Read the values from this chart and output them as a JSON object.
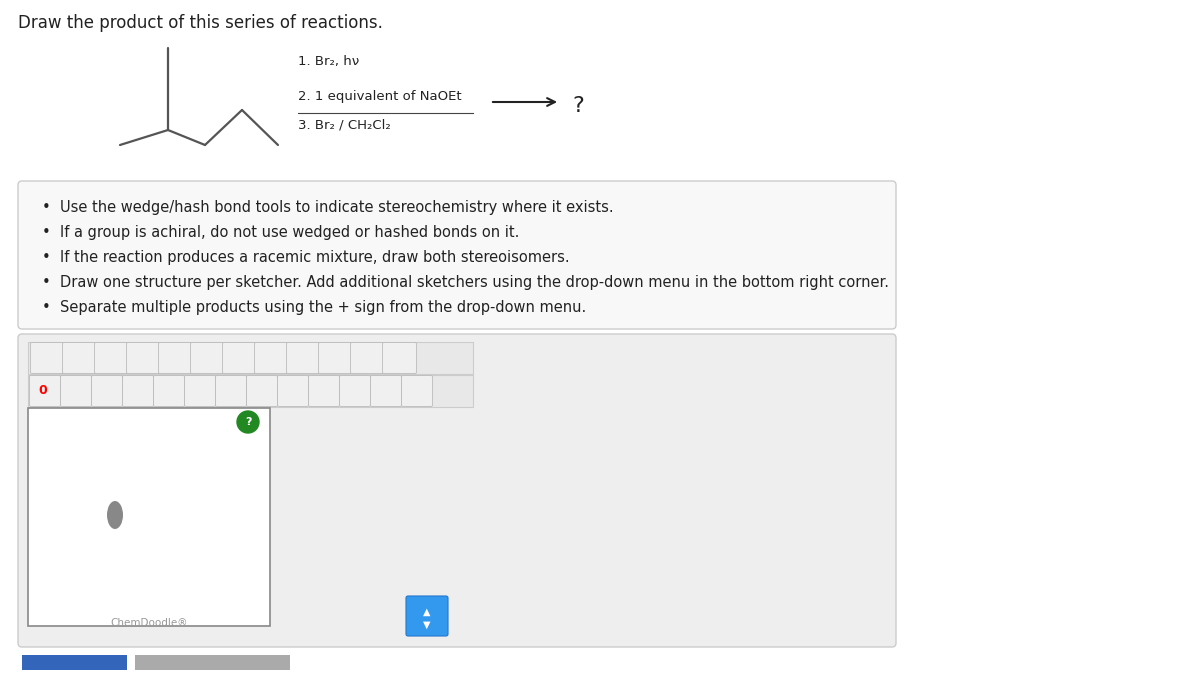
{
  "title": "Draw the product of this series of reactions.",
  "title_fontsize": 12,
  "title_color": "#222222",
  "page_bg": "#ffffff",
  "outer_bg": "#f0f0f0",
  "reaction_steps": [
    "1. Br₂, hν",
    "2. 1 equivalent of NaOEt",
    "3. Br₂ / CH₂Cl₂"
  ],
  "question_mark": "?",
  "bullet_points": [
    "Use the wedge/hash bond tools to indicate stereochemistry where it exists.",
    "If a group is achiral, do not use wedged or hashed bonds on it.",
    "If the reaction produces a racemic mixture, draw both stereoisomers.",
    "Draw one structure per sketcher. Add additional sketchers using the drop-down menu in the bottom right corner.",
    "Separate multiple products using the + sign from the drop-down menu."
  ],
  "bullet_fontsize": 10.5,
  "chemdoodle_label": "ChemDoodle®",
  "info_box_bg": "#f8f8f8",
  "info_box_border": "#cccccc",
  "toolbar_bg": "#e8e8e8",
  "toolbar_border": "#cccccc",
  "sketcher_bg": "#ffffff",
  "sketcher_border": "#888888",
  "chemdoodle_area_bg": "#eeeeee",
  "chemdoodle_area_border": "#cccccc",
  "mol_color": "#555555",
  "mol_lw": 1.6,
  "nav_btn1_color": "#3366bb",
  "nav_btn2_color": "#aaaaaa",
  "green_btn_color": "#228822",
  "blue_btn_color": "#3399ee",
  "icon_bg": "#e8e8e8",
  "icon_border": "#cccccc"
}
